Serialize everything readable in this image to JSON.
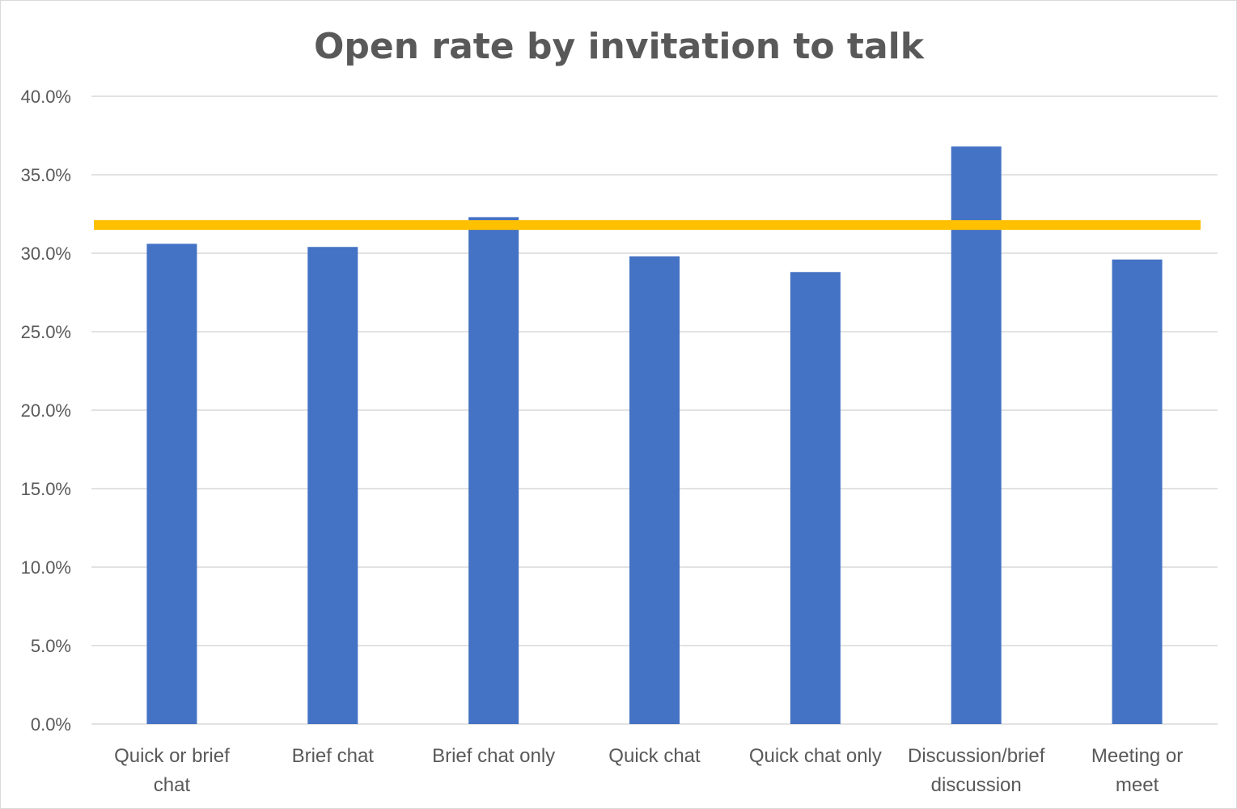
{
  "chart_data": {
    "type": "bar",
    "title": "Open rate by invitation to talk",
    "xlabel": "",
    "ylabel": "",
    "categories": [
      [
        "Quick or brief",
        "chat"
      ],
      [
        "Brief chat"
      ],
      [
        "Brief chat only"
      ],
      [
        "Quick chat"
      ],
      [
        "Quick chat only"
      ],
      [
        "Discussion/brief",
        "discussion"
      ],
      [
        "Meeting or",
        "meet"
      ]
    ],
    "values": [
      30.6,
      30.4,
      32.3,
      29.8,
      28.8,
      36.8,
      29.6
    ],
    "ylim": [
      0,
      40
    ],
    "yticks": [
      0,
      5,
      10,
      15,
      20,
      25,
      30,
      35,
      40
    ],
    "ytick_labels": [
      "0.0%",
      "5.0%",
      "10.0%",
      "15.0%",
      "20.0%",
      "25.0%",
      "30.0%",
      "35.0%",
      "40.0%"
    ],
    "reference_line": {
      "value": 31.8,
      "color": "#ffc000"
    },
    "bar_color": "#4472c4",
    "grid": true,
    "gridline_color": "#d9d9d9",
    "legend": "none"
  }
}
